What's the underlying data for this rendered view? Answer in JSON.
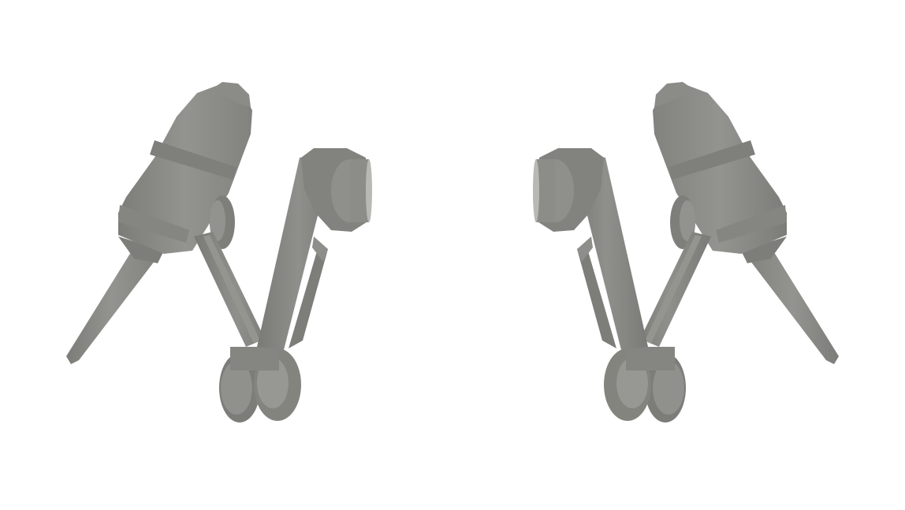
{
  "scene": {
    "description_name": "dual-robot-arms-render",
    "background_color": "#ffffff",
    "colors": {
      "base": "#8a8a86",
      "shadow": "#7a7a76",
      "highlight": "#9a9a96",
      "dark": "#6e6e6a"
    },
    "arms": [
      {
        "name": "left-arm",
        "mirrored": false
      },
      {
        "name": "right-arm",
        "mirrored": true
      }
    ]
  }
}
